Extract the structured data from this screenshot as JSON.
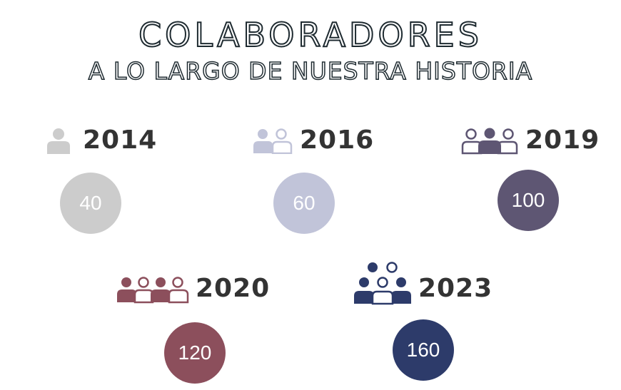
{
  "title": "COLABORADORES",
  "subtitle": "A LO LARGO DE NUESTRA HISTORIA",
  "milestones": [
    {
      "year": "2014",
      "count": "40",
      "color": "#cccccc",
      "icon": "single-person-icon"
    },
    {
      "year": "2016",
      "count": "60",
      "color": "#c1c4d9",
      "icon": "two-people-icon"
    },
    {
      "year": "2019",
      "count": "100",
      "color": "#5e5673",
      "icon": "three-people-icon"
    },
    {
      "year": "2020",
      "count": "120",
      "color": "#8c4f5c",
      "icon": "four-people-icon"
    },
    {
      "year": "2023",
      "count": "160",
      "color": "#2d3b6a",
      "icon": "five-people-icon"
    }
  ]
}
